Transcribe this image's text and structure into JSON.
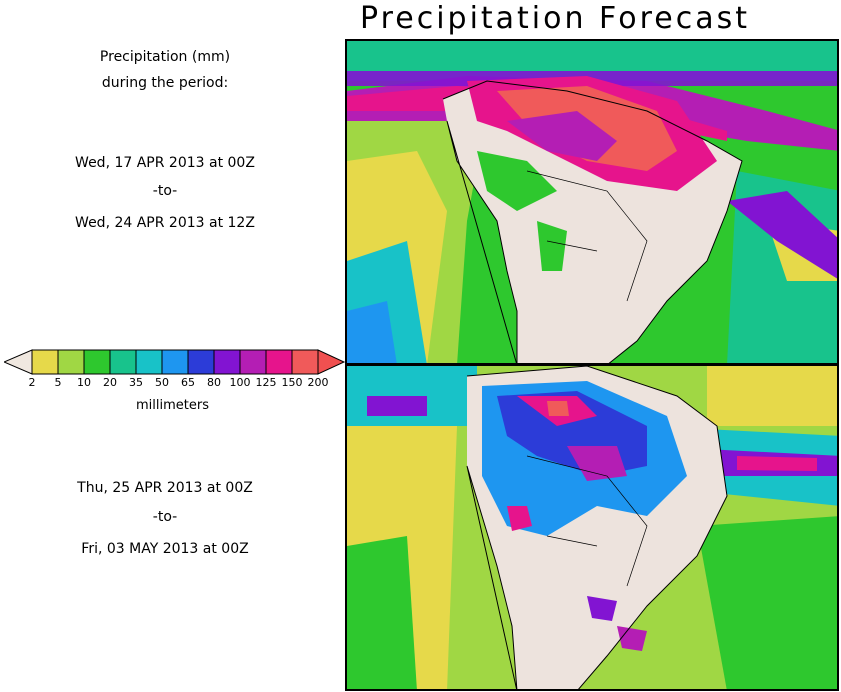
{
  "title": "Precipitation Forecast",
  "description_line1": "Precipitation (mm)",
  "description_line2": "during the period:",
  "period1": {
    "start": "Wed, 17 APR 2013 at 00Z",
    "sep": "-to-",
    "end": "Wed, 24 APR 2013 at 12Z"
  },
  "period2": {
    "start": "Thu, 25 APR 2013 at 00Z",
    "sep": "-to-",
    "end": "Fri, 03 MAY 2013 at 00Z"
  },
  "legend": {
    "units": "millimeters",
    "ticks": [
      "2",
      "5",
      "10",
      "20",
      "35",
      "50",
      "65",
      "80",
      "100",
      "125",
      "150",
      "200"
    ],
    "colors": [
      "#e6d94a",
      "#a0d744",
      "#2ec82e",
      "#18c38c",
      "#18c2c8",
      "#1e96f0",
      "#2c3cd8",
      "#8214d2",
      "#b41eb4",
      "#e6148c",
      "#f05a5a"
    ],
    "under_color": "#f0e8e0",
    "over_color": "#f05050"
  },
  "map_colors": {
    "land": "#ede3dd",
    "coast": "#000000"
  }
}
